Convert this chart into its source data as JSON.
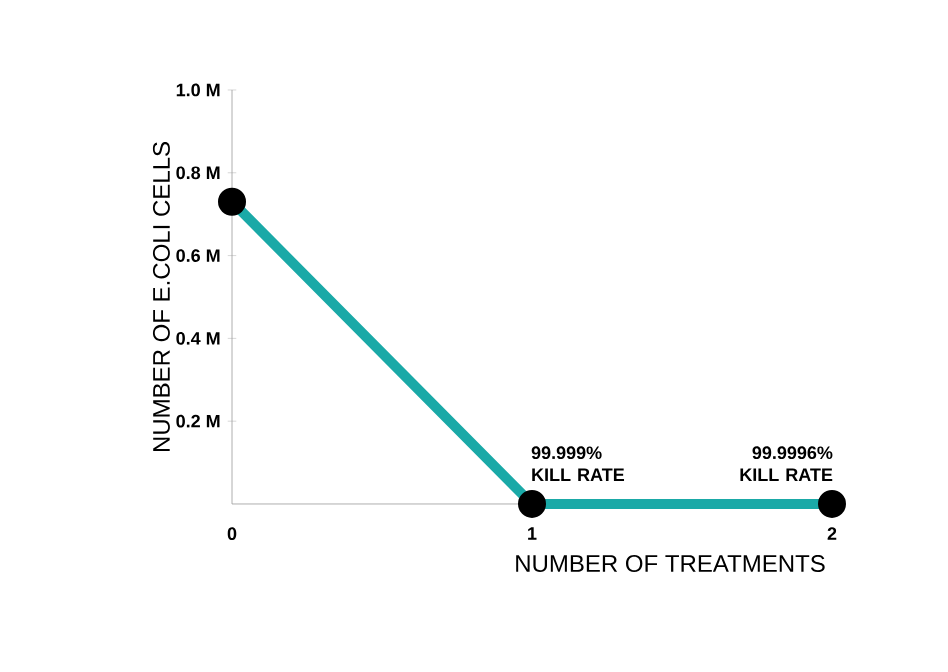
{
  "chart_data": {
    "type": "line",
    "xlabel": "NUMBER OF TREATMENTS",
    "ylabel": "NUMBER OF E.COLI CELLS",
    "x": [
      0,
      1,
      2
    ],
    "series": [
      {
        "color": "#1aa9a7",
        "values": [
          0.73,
          0,
          0
        ]
      }
    ],
    "xlim": [
      0,
      2
    ],
    "ylim": [
      0,
      1.0
    ],
    "xticks": [
      0,
      1,
      2
    ],
    "yticks": [
      {
        "value": 0.2,
        "label": "0.2 M"
      },
      {
        "value": 0.4,
        "label": "0.4 M"
      },
      {
        "value": 0.6,
        "label": "0.6 M"
      },
      {
        "value": 0.8,
        "label": "0.8 M"
      },
      {
        "value": 1.0,
        "label": "1.0 M"
      }
    ],
    "marker": "circle",
    "line_style": "solid",
    "annotations": [
      {
        "text": "99.999% KILL RATE",
        "x": 1,
        "y": 0
      },
      {
        "text": "99.9996% KILL RATE",
        "x": 2,
        "y": 0
      }
    ]
  }
}
